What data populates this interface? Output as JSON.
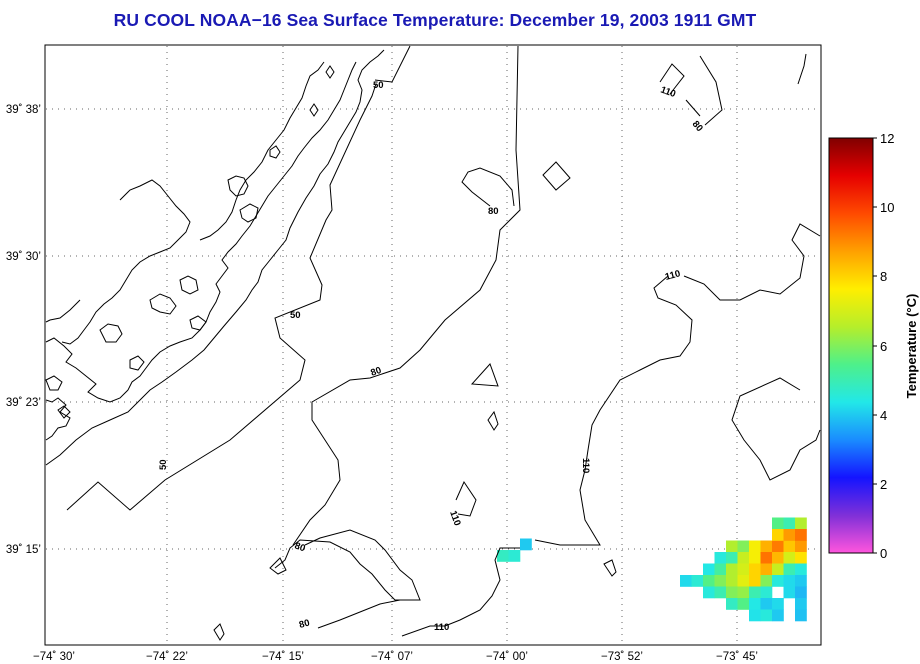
{
  "title": "RU COOL  NOAA−16  Sea Surface Temperature:  December 19, 2003 1911 GMT",
  "map": {
    "lon_ticks": [
      "−74˚ 30’",
      "−74˚ 22’",
      "−74˚ 15’",
      "−74˚ 07’",
      "−74˚ 00’",
      "−73˚ 52’",
      "−73˚ 45’"
    ],
    "lat_ticks": [
      "39˚ 38’",
      "39˚ 30’",
      "39˚ 23’",
      "39˚ 15’"
    ],
    "contour_labels": [
      "50",
      "50",
      "50",
      "80",
      "80",
      "80",
      "80",
      "80",
      "110",
      "110",
      "110",
      "110",
      "110"
    ]
  },
  "colorbar": {
    "label": "Temperature (°C)",
    "min": 0,
    "max": 12,
    "tick_labels": [
      "12",
      "10",
      "8",
      "6",
      "4",
      "2",
      "0"
    ],
    "colors": [
      "#ff55dd",
      "#7f30d8",
      "#1414ff",
      "#1a8cff",
      "#22e8e8",
      "#4ef08a",
      "#b6ee2a",
      "#ffee00",
      "#ffa000",
      "#ff4a00",
      "#e60000",
      "#800000"
    ]
  },
  "sst_pixels": [
    {
      "c": 0,
      "r": 10,
      "t": 4.8
    },
    {
      "c": 1,
      "r": 10,
      "t": 4.6
    },
    {
      "c": 2,
      "r": 9,
      "t": 4.0
    },
    {
      "c": 12,
      "r": 9,
      "t": 6.5
    },
    {
      "c": 13,
      "r": 9,
      "t": 6.0
    },
    {
      "c": 14,
      "r": 9,
      "t": 7.5
    },
    {
      "c": 15,
      "r": 9,
      "t": 8.5
    },
    {
      "c": 16,
      "r": 9,
      "t": 9.2
    },
    {
      "c": 17,
      "r": 9,
      "t": 8.2
    },
    {
      "c": 18,
      "r": 9,
      "t": 8.8
    },
    {
      "c": 16,
      "r": 7,
      "t": 5.5
    },
    {
      "c": 17,
      "r": 7,
      "t": 5.0
    },
    {
      "c": 18,
      "r": 7,
      "t": 6.5
    },
    {
      "c": 16,
      "r": 8,
      "t": 8.0
    },
    {
      "c": 17,
      "r": 8,
      "t": 8.8
    },
    {
      "c": 18,
      "r": 8,
      "t": 9.3
    },
    {
      "c": 11,
      "r": 10,
      "t": 4.5
    },
    {
      "c": 12,
      "r": 10,
      "t": 5.0
    },
    {
      "c": 13,
      "r": 10,
      "t": 6.8
    },
    {
      "c": 14,
      "r": 10,
      "t": 7.5
    },
    {
      "c": 15,
      "r": 10,
      "t": 9.3
    },
    {
      "c": 16,
      "r": 10,
      "t": 8.4
    },
    {
      "c": 17,
      "r": 10,
      "t": 7.0
    },
    {
      "c": 18,
      "r": 10,
      "t": 7.8
    },
    {
      "c": 10,
      "r": 11,
      "t": 4.4
    },
    {
      "c": 11,
      "r": 11,
      "t": 5.2
    },
    {
      "c": 12,
      "r": 11,
      "t": 6.5
    },
    {
      "c": 13,
      "r": 11,
      "t": 7.0
    },
    {
      "c": 14,
      "r": 11,
      "t": 8.0
    },
    {
      "c": 15,
      "r": 11,
      "t": 8.5
    },
    {
      "c": 16,
      "r": 11,
      "t": 6.8
    },
    {
      "c": 17,
      "r": 11,
      "t": 5.0
    },
    {
      "c": 18,
      "r": 11,
      "t": 4.5
    },
    {
      "c": 8,
      "r": 12,
      "t": 4.2
    },
    {
      "c": 9,
      "r": 12,
      "t": 4.6
    },
    {
      "c": 10,
      "r": 12,
      "t": 5.5
    },
    {
      "c": 11,
      "r": 12,
      "t": 6.0
    },
    {
      "c": 12,
      "r": 12,
      "t": 6.5
    },
    {
      "c": 13,
      "r": 12,
      "t": 7.2
    },
    {
      "c": 14,
      "r": 12,
      "t": 8.0
    },
    {
      "c": 15,
      "r": 12,
      "t": 6.0
    },
    {
      "c": 16,
      "r": 12,
      "t": 4.5
    },
    {
      "c": 17,
      "r": 12,
      "t": 4.2
    },
    {
      "c": 18,
      "r": 12,
      "t": 4.0
    },
    {
      "c": 10,
      "r": 13,
      "t": 4.5
    },
    {
      "c": 11,
      "r": 13,
      "t": 5.0
    },
    {
      "c": 12,
      "r": 13,
      "t": 6.0
    },
    {
      "c": 13,
      "r": 13,
      "t": 6.2
    },
    {
      "c": 14,
      "r": 13,
      "t": 5.0
    },
    {
      "c": 15,
      "r": 13,
      "t": 4.6
    },
    {
      "c": 17,
      "r": 13,
      "t": 4.2
    },
    {
      "c": 18,
      "r": 13,
      "t": 3.8
    },
    {
      "c": 12,
      "r": 14,
      "t": 4.8
    },
    {
      "c": 13,
      "r": 14,
      "t": 5.5
    },
    {
      "c": 14,
      "r": 14,
      "t": 4.4
    },
    {
      "c": 15,
      "r": 14,
      "t": 4.0
    },
    {
      "c": 16,
      "r": 14,
      "t": 4.2
    },
    {
      "c": 18,
      "r": 14,
      "t": 4.0
    },
    {
      "c": 14,
      "r": 15,
      "t": 4.3
    },
    {
      "c": 15,
      "r": 15,
      "t": 4.5
    },
    {
      "c": 16,
      "r": 15,
      "t": 4.0
    },
    {
      "c": 18,
      "r": 15,
      "t": 3.9
    }
  ]
}
